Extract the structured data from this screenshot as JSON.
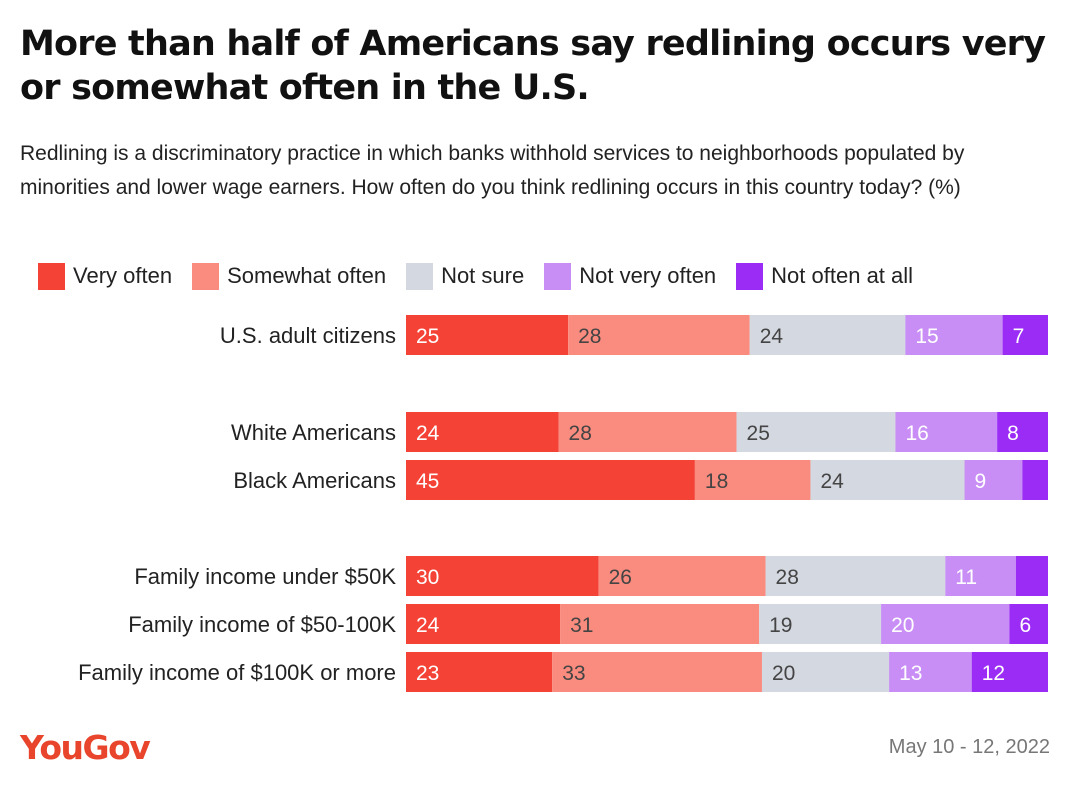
{
  "title": "More than half of Americans say redlining occurs very or somewhat often in the U.S.",
  "subtitle": "Redlining is a discriminatory practice in which banks withhold services to neighborhoods populated by minorities and lower wage earners. How often do you think redlining occurs in this country today? (%)",
  "brand": "YouGov",
  "date": "May 10 - 12, 2022",
  "chart_data": {
    "type": "bar",
    "orientation": "horizontal",
    "stacked": true,
    "xlim": [
      0,
      100
    ],
    "grid": false,
    "legend_position": "top-left",
    "categories": [
      "U.S. adult citizens",
      "White Americans",
      "Black Americans",
      "Family income under $50K",
      "Family income of $50-100K",
      "Family income of $100K or more"
    ],
    "groups": [
      [
        0
      ],
      [
        1,
        2
      ],
      [
        3,
        4,
        5
      ]
    ],
    "series": [
      {
        "name": "Very often",
        "color": "#f44336",
        "values": [
          25,
          24,
          45,
          30,
          24,
          23
        ],
        "labels": [
          "25",
          "24",
          "45",
          "30",
          "24",
          "23"
        ]
      },
      {
        "name": "Somewhat often",
        "color": "#fa8c7f",
        "values": [
          28,
          28,
          18,
          26,
          31,
          33
        ],
        "labels": [
          "28",
          "28",
          "18",
          "26",
          "31",
          "33"
        ]
      },
      {
        "name": "Not sure",
        "color": "#d4d8e0",
        "values": [
          24,
          25,
          24,
          28,
          19,
          20
        ],
        "labels": [
          "24",
          "25",
          "24",
          "28",
          "19",
          "20"
        ]
      },
      {
        "name": "Not very often",
        "color": "#c88ef5",
        "values": [
          15,
          16,
          9,
          11,
          20,
          13
        ],
        "labels": [
          "15",
          "16",
          "9",
          "11",
          "20",
          "13"
        ]
      },
      {
        "name": "Not often at all",
        "color": "#9b2cf5",
        "values": [
          7,
          8,
          4,
          5,
          6,
          12
        ],
        "labels": [
          "7",
          "8",
          "",
          "",
          "6",
          "12"
        ]
      }
    ]
  }
}
